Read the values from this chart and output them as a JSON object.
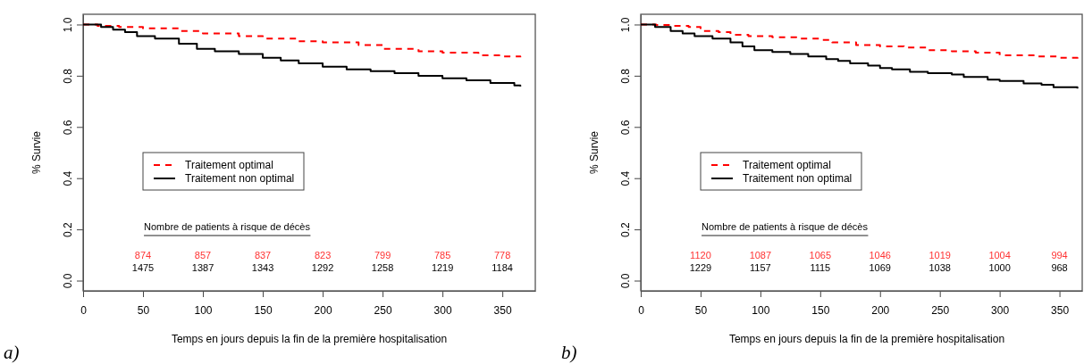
{
  "chart_data": [
    {
      "type": "step",
      "xlabel": "Temps en jours depuis la fin de la première hospitalisation",
      "ylabel": "% Survie",
      "xlim": [
        0,
        377.5
      ],
      "ylim": [
        -0.04,
        1.04
      ],
      "xticks": [
        0,
        50,
        100,
        150,
        200,
        250,
        300,
        350
      ],
      "yticks": [
        {
          "value": 0,
          "label": "0.0"
        },
        {
          "value": 0.2,
          "label": "0.2"
        },
        {
          "value": 0.4,
          "label": "0.4"
        },
        {
          "value": 0.6,
          "label": "0.6"
        },
        {
          "value": 0.8,
          "label": "0.8"
        },
        {
          "value": 1,
          "label": "1.0"
        }
      ],
      "legend": "left",
      "grid": false,
      "series": [
        {
          "name": "Traitement optimal",
          "color": "#ff0000",
          "line_style": "dashed",
          "x": [
            0,
            12,
            30,
            50,
            80,
            100,
            130,
            150,
            180,
            200,
            230,
            250,
            280,
            300,
            330,
            350,
            365
          ],
          "values": [
            1,
            0.995,
            0.99,
            0.985,
            0.975,
            0.965,
            0.955,
            0.945,
            0.935,
            0.93,
            0.92,
            0.905,
            0.895,
            0.89,
            0.88,
            0.875,
            0.872
          ]
        },
        {
          "name": "Traitement non optimal",
          "color": "#000000",
          "line_style": "solid",
          "x": [
            0,
            15,
            25,
            35,
            45,
            60,
            80,
            95,
            110,
            130,
            150,
            165,
            180,
            200,
            220,
            240,
            260,
            280,
            300,
            320,
            340,
            360,
            365
          ],
          "values": [
            1,
            0.99,
            0.98,
            0.97,
            0.955,
            0.945,
            0.925,
            0.905,
            0.895,
            0.885,
            0.87,
            0.86,
            0.848,
            0.835,
            0.825,
            0.818,
            0.81,
            0.8,
            0.79,
            0.782,
            0.772,
            0.762,
            0.758
          ]
        }
      ],
      "annotations": [
        "Nombre de patients à risque de décès",
        "a)",
        "874",
        "857",
        "837",
        "823",
        "799",
        "785",
        "778",
        "1475",
        "1387",
        "1343",
        "1292",
        "1258",
        "1219",
        "1184"
      ]
    },
    {
      "type": "step",
      "xlabel": "Temps en jours depuis la fin de la première hospitalisation",
      "ylabel": "% Survie",
      "xlim": [
        0,
        369
      ],
      "ylim": [
        -0.04,
        1.04
      ],
      "xticks": [
        0,
        50,
        100,
        150,
        200,
        250,
        300,
        350
      ],
      "yticks": [
        {
          "value": 0,
          "label": "0.0"
        },
        {
          "value": 0.2,
          "label": "0.2"
        },
        {
          "value": 0.4,
          "label": "0.4"
        },
        {
          "value": 0.6,
          "label": "0.6"
        },
        {
          "value": 0.8,
          "label": "0.8"
        },
        {
          "value": 1,
          "label": "1.0"
        }
      ],
      "legend": "left",
      "grid": false,
      "series": [
        {
          "name": "Traitement optimal",
          "color": "#ff0000",
          "line_style": "dashed",
          "x": [
            0,
            13,
            25,
            40,
            50,
            65,
            75,
            90,
            110,
            130,
            150,
            160,
            180,
            200,
            220,
            240,
            260,
            280,
            300,
            330,
            350,
            365
          ],
          "values": [
            1,
            0.998,
            0.995,
            0.99,
            0.975,
            0.97,
            0.96,
            0.955,
            0.95,
            0.945,
            0.94,
            0.93,
            0.92,
            0.915,
            0.91,
            0.9,
            0.895,
            0.89,
            0.88,
            0.875,
            0.87,
            0.866
          ]
        },
        {
          "name": "Traitement non optimal",
          "color": "#000000",
          "line_style": "solid",
          "x": [
            0,
            12,
            25,
            35,
            45,
            60,
            75,
            85,
            95,
            110,
            125,
            140,
            155,
            165,
            175,
            190,
            200,
            210,
            225,
            240,
            260,
            270,
            290,
            300,
            320,
            335,
            345,
            365
          ],
          "values": [
            1,
            0.99,
            0.975,
            0.965,
            0.955,
            0.945,
            0.93,
            0.915,
            0.9,
            0.893,
            0.885,
            0.875,
            0.865,
            0.858,
            0.848,
            0.84,
            0.83,
            0.825,
            0.815,
            0.81,
            0.805,
            0.795,
            0.785,
            0.78,
            0.77,
            0.765,
            0.755,
            0.75
          ]
        }
      ],
      "annotations": [
        "Nombre de patients à risque de décès",
        "b)",
        "1120",
        "1087",
        "1065",
        "1046",
        "1019",
        "1004",
        "994",
        "1229",
        "1157",
        "1115",
        "1069",
        "1038",
        "1000",
        "968"
      ]
    }
  ]
}
